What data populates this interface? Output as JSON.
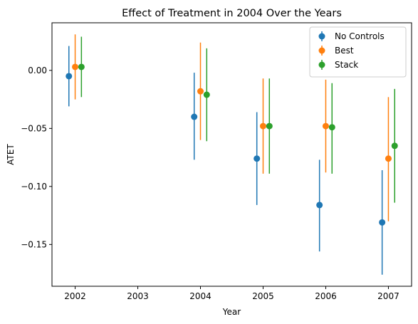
{
  "chart_data": {
    "type": "scatter",
    "title": "Effect of Treatment in 2004 Over the Years",
    "xlabel": "Year",
    "ylabel": "ATET",
    "x_ticks": [
      2002,
      2003,
      2004,
      2005,
      2006,
      2007
    ],
    "y_ticks": [
      0.0,
      -0.05,
      -0.1,
      -0.15
    ],
    "y_tick_labels": [
      "0.00",
      "−0.05",
      "−0.10",
      "−0.15"
    ],
    "xlim": [
      2001.63,
      2007.37
    ],
    "ylim": [
      -0.186,
      0.041
    ],
    "grid": false,
    "legend_position": "top-right",
    "series": [
      {
        "name": "No Controls",
        "color": "#1f77b4",
        "offset": -0.1,
        "points": [
          {
            "x": 2002,
            "y": -0.005,
            "lo": -0.031,
            "hi": 0.021
          },
          {
            "x": 2004,
            "y": -0.04,
            "lo": -0.077,
            "hi": -0.002
          },
          {
            "x": 2005,
            "y": -0.076,
            "lo": -0.116,
            "hi": -0.036
          },
          {
            "x": 2006,
            "y": -0.116,
            "lo": -0.156,
            "hi": -0.077
          },
          {
            "x": 2007,
            "y": -0.131,
            "lo": -0.176,
            "hi": -0.086
          }
        ]
      },
      {
        "name": "Best",
        "color": "#ff7f0e",
        "offset": 0.0,
        "points": [
          {
            "x": 2002,
            "y": 0.003,
            "lo": -0.025,
            "hi": 0.031
          },
          {
            "x": 2004,
            "y": -0.018,
            "lo": -0.06,
            "hi": 0.024
          },
          {
            "x": 2005,
            "y": -0.048,
            "lo": -0.089,
            "hi": -0.007
          },
          {
            "x": 2006,
            "y": -0.048,
            "lo": -0.088,
            "hi": -0.008
          },
          {
            "x": 2007,
            "y": -0.076,
            "lo": -0.13,
            "hi": -0.023
          }
        ]
      },
      {
        "name": "Stack",
        "color": "#2ca02c",
        "offset": 0.1,
        "points": [
          {
            "x": 2002,
            "y": 0.003,
            "lo": -0.023,
            "hi": 0.029
          },
          {
            "x": 2004,
            "y": -0.021,
            "lo": -0.061,
            "hi": 0.019
          },
          {
            "x": 2005,
            "y": -0.048,
            "lo": -0.089,
            "hi": -0.007
          },
          {
            "x": 2006,
            "y": -0.049,
            "lo": -0.089,
            "hi": -0.011
          },
          {
            "x": 2007,
            "y": -0.065,
            "lo": -0.114,
            "hi": -0.016
          }
        ]
      }
    ]
  }
}
